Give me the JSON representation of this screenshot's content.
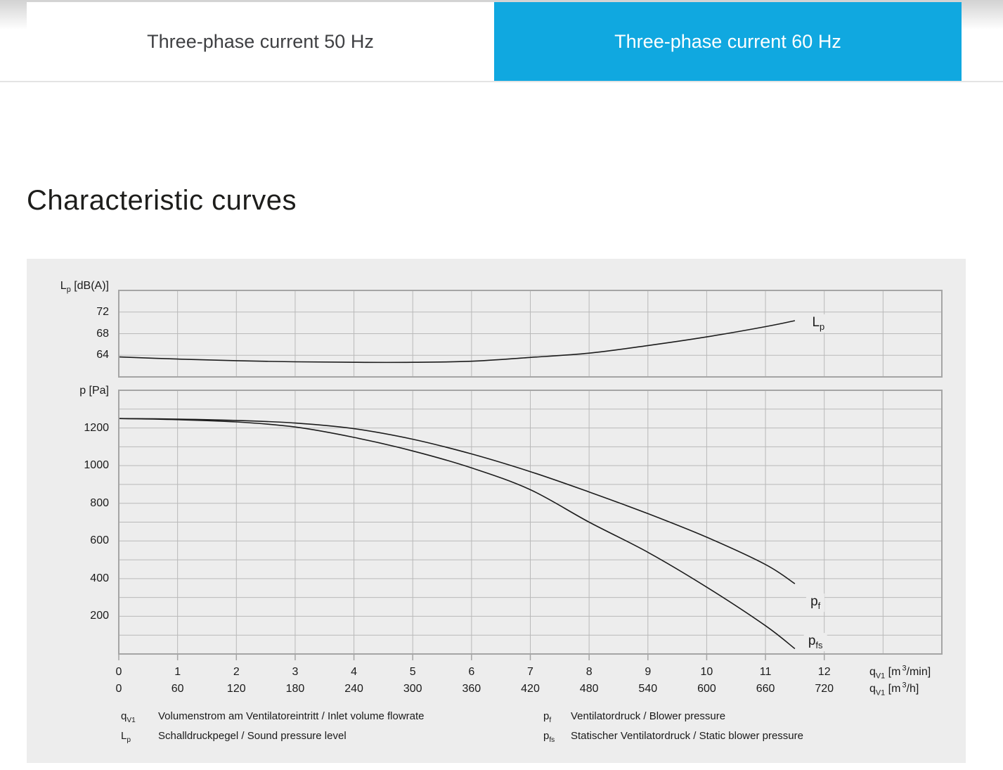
{
  "tabs": [
    {
      "label": "Three-phase current 50 Hz",
      "active": false
    },
    {
      "label": "Three-phase current 60 Hz",
      "active": true
    }
  ],
  "page": {
    "heading": "Characteristic curves"
  },
  "colors": {
    "accent_blue": "#10a8e0",
    "panel_bg": "#ededed",
    "grid": "#b9b9b9",
    "plot_border": "#a5a5a5",
    "curve": "#1c1c1c"
  },
  "chart": {
    "y_top_label": {
      "base": "L",
      "sub": "p",
      "rest": " [dB(A)]"
    },
    "y_bottom_label": "p [Pa]",
    "x_unit_min": {
      "base": "q",
      "sub": "V1",
      "mid": " [m",
      "sup": "3",
      "end": "/min]"
    },
    "x_unit_h": {
      "base": "q",
      "sub": "V1",
      "mid": " [m",
      "sup": "3",
      "end": "/h]"
    },
    "curve_labels": {
      "lp": {
        "base": "L",
        "sub": "p"
      },
      "pf": {
        "base": "p",
        "sub": "f"
      },
      "pfs": {
        "base": "p",
        "sub": "fs"
      }
    }
  },
  "legend": {
    "left": [
      {
        "sym_base": "q",
        "sym_sub": "V1",
        "text": "Volumenstrom am Ventilatoreintritt / Inlet volume flowrate"
      },
      {
        "sym_base": "L",
        "sym_sub": "p",
        "text": "Schalldruckpegel / Sound pressure level"
      }
    ],
    "right": [
      {
        "sym_base": "p",
        "sym_sub": "f",
        "text": "Ventilatordruck / Blower pressure"
      },
      {
        "sym_base": "p",
        "sym_sub": "fs",
        "text": "Statischer Ventilatordruck / Static blower pressure"
      }
    ]
  },
  "chart_data": {
    "type": "line",
    "grid": true,
    "x_axis": {
      "axis_max_units": 14,
      "ticks_m3_min": [
        0,
        1,
        2,
        3,
        4,
        5,
        6,
        7,
        8,
        9,
        10,
        11,
        12
      ],
      "ticks_m3_h": [
        0,
        60,
        120,
        180,
        240,
        300,
        360,
        420,
        480,
        540,
        600,
        660,
        720
      ],
      "xlabel_row1": "qV1 [m3/min]",
      "xlabel_row2": "qV1 [m3/h]"
    },
    "plots": [
      {
        "id": "sound_pressure",
        "ylabel": "Lp [dB(A)]",
        "ylim": [
          60,
          76
        ],
        "grid_step": 4,
        "yticks": [
          64,
          68,
          72
        ],
        "series": [
          {
            "name": "Lp",
            "x": [
              0,
              1,
              2,
              3,
              4,
              5,
              6,
              7,
              8,
              9,
              10,
              11,
              11.5
            ],
            "y": [
              63.7,
              63.3,
              63.0,
              62.8,
              62.7,
              62.7,
              62.9,
              63.6,
              64.4,
              65.8,
              67.4,
              69.3,
              70.4
            ],
            "label_at": {
              "x": 11.9,
              "y": 69.9
            }
          }
        ]
      },
      {
        "id": "pressure",
        "ylabel": "p [Pa]",
        "ylim": [
          0,
          1400
        ],
        "grid_step": 100,
        "yticks": [
          200,
          400,
          600,
          800,
          1000,
          1200
        ],
        "series": [
          {
            "name": "pf",
            "x": [
              0,
              1,
              2,
              3,
              4,
              5,
              6,
              7,
              8,
              9,
              10,
              11,
              11.5
            ],
            "y": [
              1250,
              1247,
              1240,
              1226,
              1196,
              1140,
              1062,
              968,
              860,
              745,
              620,
              475,
              373
            ],
            "label_at": {
              "x": 11.85,
              "y": 272
            }
          },
          {
            "name": "pfs",
            "x": [
              0,
              1,
              2,
              3,
              4,
              5,
              6,
              7,
              8,
              9,
              10,
              11,
              11.5
            ],
            "y": [
              1250,
              1244,
              1232,
              1205,
              1150,
              1078,
              988,
              872,
              700,
              540,
              355,
              150,
              28
            ],
            "label_at": {
              "x": 11.85,
              "y": 64
            }
          }
        ]
      }
    ]
  }
}
